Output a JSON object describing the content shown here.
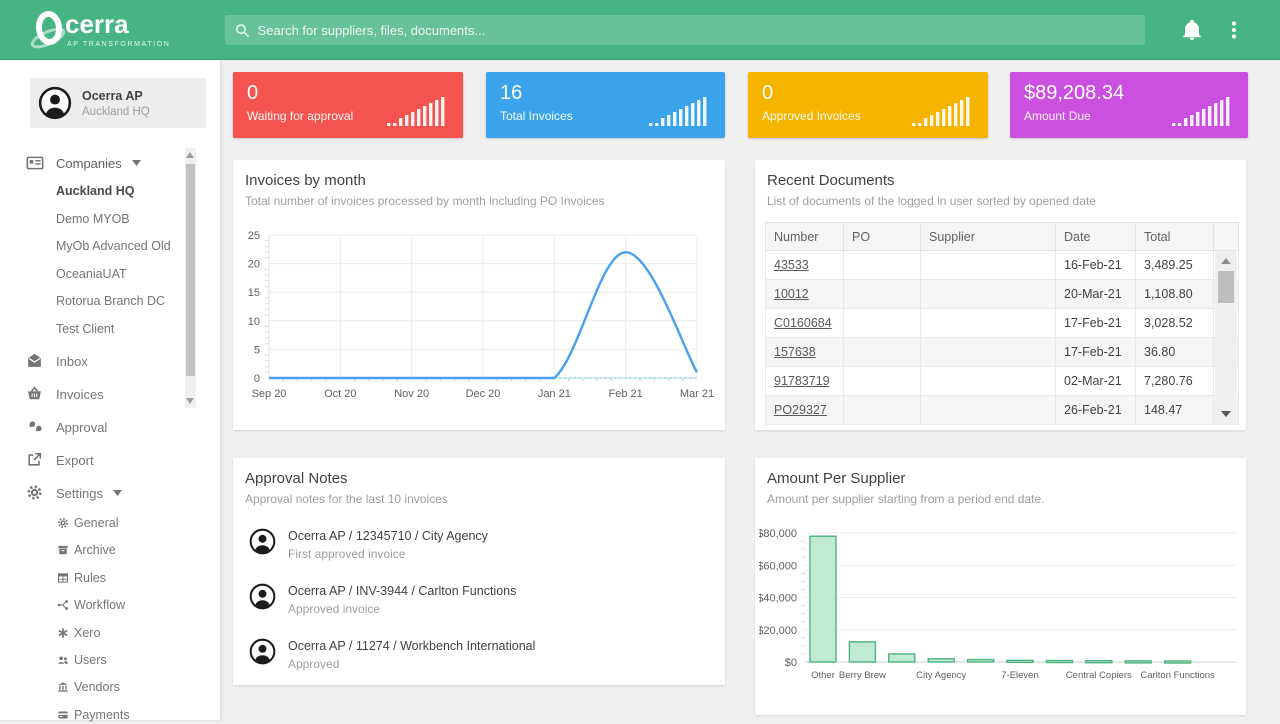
{
  "colors": {
    "header_green": "#47b583",
    "stat_red": "#f4534f",
    "stat_blue": "#3aa3ec",
    "stat_yellow": "#f5b400",
    "stat_magenta": "#cb4fe0",
    "line_blue": "#4a9ff0",
    "line_teal": "#8fd9e8",
    "bar_fill": "#c0ead2",
    "bar_border": "#4db381"
  },
  "header": {
    "logo_title": "cerra",
    "logo_subtitle": "AP TRANSFORMATION",
    "search_placeholder": "Search for suppliers, files, documents...",
    "icons": [
      "search-icon",
      "bell-icon",
      "kebab-menu-icon"
    ]
  },
  "sidebar": {
    "user": {
      "name": "Ocerra AP",
      "location": "Auckland HQ"
    },
    "companies_label": "Companies",
    "companies": [
      "Auckland HQ",
      "Demo MYOB",
      "MyOb Advanced Old",
      "OceaniaUAT",
      "Rotorua Branch DC",
      "Test Client"
    ],
    "active_company": "Auckland HQ",
    "items": [
      {
        "label": "Inbox",
        "icon": "inbox-icon"
      },
      {
        "label": "Invoices",
        "icon": "invoices-icon"
      },
      {
        "label": "Approval",
        "icon": "approval-icon"
      },
      {
        "label": "Export",
        "icon": "export-icon"
      },
      {
        "label": "Settings",
        "icon": "settings-icon"
      }
    ],
    "settings_children": [
      {
        "label": "General",
        "icon": "general-icon"
      },
      {
        "label": "Archive",
        "icon": "archive-icon"
      },
      {
        "label": "Rules",
        "icon": "rules-icon"
      },
      {
        "label": "Workflow",
        "icon": "workflow-icon"
      },
      {
        "label": "Xero",
        "icon": "xero-icon"
      },
      {
        "label": "Users",
        "icon": "users-icon"
      },
      {
        "label": "Vendors",
        "icon": "vendors-icon"
      },
      {
        "label": "Payments",
        "icon": "payments-icon"
      }
    ]
  },
  "stats": [
    {
      "value": "0",
      "label": "Waiting for approval",
      "color": "#f4534f",
      "icon": "bars-rising-icon"
    },
    {
      "value": "16",
      "label": "Total Invoices",
      "color": "#3aa3ec",
      "icon": "bars-rising-icon"
    },
    {
      "value": "0",
      "label": "Approved Invoices",
      "color": "#f5b400",
      "icon": "bars-rising-icon"
    },
    {
      "value": "$89,208.34",
      "label": "Amount Due",
      "color": "#cb4fe0",
      "icon": "bars-rising-icon"
    }
  ],
  "panels": {
    "invoices_by_month": {
      "title": "Invoices by month",
      "subtitle": "Total number of invoices processed by month including PO Invoices"
    },
    "recent_documents": {
      "title": "Recent Documents",
      "subtitle": "List of documents of the logged in user sorted by opened date",
      "columns": [
        "Number",
        "PO",
        "Supplier",
        "Date",
        "Total"
      ],
      "rows": [
        {
          "number": "43533",
          "po": "",
          "supplier": "",
          "date": "16-Feb-21",
          "total": "3,489.25"
        },
        {
          "number": "10012",
          "po": "",
          "supplier": "",
          "date": "20-Mar-21",
          "total": "1,108.80"
        },
        {
          "number": "C0160684",
          "po": "",
          "supplier": "",
          "date": "17-Feb-21",
          "total": "3,028.52"
        },
        {
          "number": "157638",
          "po": "",
          "supplier": "",
          "date": "17-Feb-21",
          "total": "36.80"
        },
        {
          "number": "91783719",
          "po": "",
          "supplier": "",
          "date": "02-Mar-21",
          "total": "7,280.76"
        },
        {
          "number": "PO29327",
          "po": "",
          "supplier": "",
          "date": "26-Feb-21",
          "total": "148.47"
        }
      ]
    },
    "approval_notes": {
      "title": "Approval Notes",
      "subtitle": "Approval notes for the last 10 invoices",
      "notes": [
        {
          "title": "Ocerra AP / 12345710 / City Agency",
          "note": "First approved invoice"
        },
        {
          "title": "Ocerra AP / INV-3944 / Carlton Functions",
          "note": "Approved invoice"
        },
        {
          "title": "Ocerra AP / 11274 / Workbench International",
          "note": "Approved"
        }
      ]
    },
    "amount_per_supplier": {
      "title": "Amount Per Supplier",
      "subtitle": "Amount per supplier starting from a period end date."
    }
  },
  "chart_data": [
    {
      "type": "line",
      "title": "Invoices by month",
      "x": [
        "Sep 20",
        "Oct 20",
        "Nov 20",
        "Dec 20",
        "Jan 21",
        "Feb 21",
        "Mar 21"
      ],
      "series": [
        {
          "name": "Invoices",
          "values": [
            0,
            0,
            0,
            0,
            0,
            22,
            1
          ],
          "color": "#4a9ff0",
          "style": "solid"
        },
        {
          "name": "PO Invoices",
          "values": [
            0,
            0,
            0,
            0,
            0,
            0,
            0
          ],
          "color": "#8fd9e8",
          "style": "dashed"
        }
      ],
      "ylim": [
        0,
        25
      ],
      "yticks": [
        0,
        5,
        10,
        15,
        20,
        25
      ],
      "grid": true,
      "legend": "none"
    },
    {
      "type": "bar",
      "title": "Amount Per Supplier",
      "categories": [
        "Other",
        "Berry Brew",
        "",
        "City Agency",
        "",
        "7-Eleven",
        "",
        "Central Copiers",
        "",
        "Carlton Functions"
      ],
      "values": [
        78000,
        12500,
        5000,
        2000,
        1500,
        1000,
        900,
        800,
        700,
        600
      ],
      "ylim": [
        0,
        80000
      ],
      "ytick_values": [
        0,
        20000,
        40000,
        60000,
        80000
      ],
      "ytick_labels": [
        "$0",
        "$20,000",
        "$40,000",
        "$60,000",
        "$80,000"
      ],
      "grid": true,
      "legend": "none"
    }
  ]
}
